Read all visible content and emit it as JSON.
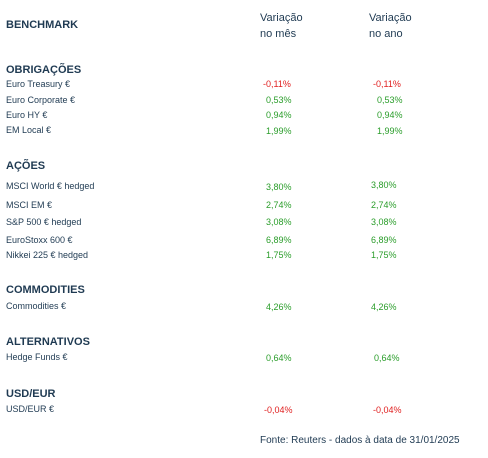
{
  "header": {
    "title": "BENCHMARK",
    "col1_line1": "Variação",
    "col1_line2": "no mês",
    "col2_line1": "Variação",
    "col2_line2": "no ano"
  },
  "colors": {
    "positive": "#2a9d2a",
    "negative": "#e02020",
    "text": "#1f3a52"
  },
  "sections": [
    {
      "title": "OBRIGAÇÕES",
      "rows": [
        {
          "label": "Euro Treasury €",
          "month": "-0,11%",
          "year": "-0,11%"
        },
        {
          "label": "Euro Corporate €",
          "month": "0,53%",
          "year": "0,53%"
        },
        {
          "label": "Euro HY €",
          "month": "0,94%",
          "year": "0,94%"
        },
        {
          "label": "EM Local €",
          "month": "1,99%",
          "year": "1,99%"
        }
      ]
    },
    {
      "title": "AÇÕES",
      "rows": [
        {
          "label": "MSCI World € hedged",
          "month": "3,80%",
          "year": "3,80%"
        },
        {
          "label": "MSCI EM €",
          "month": "2,74%",
          "year": "2,74%"
        },
        {
          "label": "S&P 500 € hedged",
          "month": "3,08%",
          "year": "3,08%"
        },
        {
          "label": "EuroStoxx 600 €",
          "month": "6,89%",
          "year": "6,89%"
        },
        {
          "label": "Nikkei 225 € hedged",
          "month": "1,75%",
          "year": "1,75%"
        }
      ]
    },
    {
      "title": "COMMODITIES",
      "rows": [
        {
          "label": "Commodities €",
          "month": "4,26%",
          "year": "4,26%"
        }
      ]
    },
    {
      "title": "ALTERNATIVOS",
      "rows": [
        {
          "label": "Hedge Funds €",
          "month": "0,64%",
          "year": "0,64%"
        }
      ]
    },
    {
      "title": "USD/EUR",
      "rows": [
        {
          "label": "USD/EUR €",
          "month": "-0,04%",
          "year": "-0,04%"
        }
      ]
    }
  ],
  "source": "Fonte: Reuters - dados à data de 31/01/2025"
}
